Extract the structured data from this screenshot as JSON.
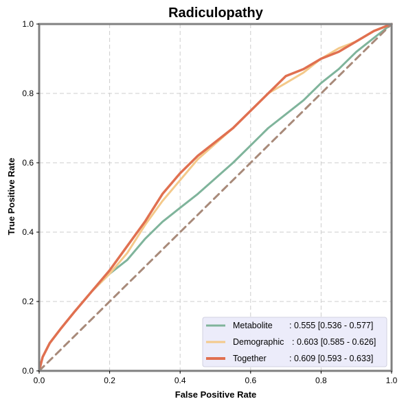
{
  "chart_data": {
    "type": "line",
    "title": "Radiculopathy",
    "xlabel": "False Positive Rate",
    "ylabel": "True Positive Rate",
    "xlim": [
      0,
      1
    ],
    "ylim": [
      0,
      1
    ],
    "xticks": [
      "0.0",
      "0.2",
      "0.4",
      "0.6",
      "0.8",
      "1.0"
    ],
    "yticks": [
      "0.0",
      "0.2",
      "0.4",
      "0.6",
      "0.8",
      "1.0"
    ],
    "grid": true,
    "legend_position": "bottom-right",
    "colors": {
      "metabolite": "#7fb49b",
      "demographic": "#f4c98a",
      "together": "#e07050",
      "chance": "#a88a7a",
      "frame": "#808080",
      "grid": "#cccccc",
      "legend_bg": "#ebebfa"
    },
    "legend": [
      {
        "name": "Metabolite",
        "text": ": 0.555 [0.536 - 0.577]"
      },
      {
        "name": "Demographic",
        "text": ": 0.603 [0.585 - 0.626]"
      },
      {
        "name": "Together",
        "text": ": 0.609 [0.593 - 0.633]"
      }
    ],
    "series": [
      {
        "name": "Metabolite",
        "key": "metabolite",
        "x": [
          0,
          0.01,
          0.03,
          0.06,
          0.1,
          0.15,
          0.2,
          0.25,
          0.3,
          0.35,
          0.4,
          0.45,
          0.5,
          0.55,
          0.6,
          0.65,
          0.7,
          0.75,
          0.8,
          0.85,
          0.9,
          0.95,
          1.0
        ],
        "y": [
          0,
          0.04,
          0.08,
          0.12,
          0.17,
          0.23,
          0.28,
          0.32,
          0.38,
          0.43,
          0.47,
          0.51,
          0.555,
          0.6,
          0.65,
          0.7,
          0.74,
          0.78,
          0.83,
          0.87,
          0.92,
          0.96,
          1.0
        ]
      },
      {
        "name": "Demographic",
        "key": "demographic",
        "x": [
          0,
          0.01,
          0.03,
          0.06,
          0.1,
          0.15,
          0.2,
          0.25,
          0.3,
          0.35,
          0.4,
          0.45,
          0.5,
          0.55,
          0.6,
          0.65,
          0.7,
          0.75,
          0.8,
          0.85,
          0.9,
          0.95,
          1.0
        ],
        "y": [
          0,
          0.04,
          0.08,
          0.12,
          0.17,
          0.23,
          0.28,
          0.34,
          0.42,
          0.49,
          0.55,
          0.61,
          0.655,
          0.7,
          0.75,
          0.8,
          0.83,
          0.86,
          0.9,
          0.93,
          0.95,
          0.98,
          1.0
        ]
      },
      {
        "name": "Together",
        "key": "together",
        "x": [
          0,
          0.01,
          0.03,
          0.06,
          0.1,
          0.15,
          0.2,
          0.25,
          0.3,
          0.35,
          0.4,
          0.45,
          0.5,
          0.55,
          0.6,
          0.65,
          0.7,
          0.75,
          0.8,
          0.85,
          0.9,
          0.95,
          1.0
        ],
        "y": [
          0,
          0.04,
          0.08,
          0.12,
          0.17,
          0.23,
          0.29,
          0.36,
          0.43,
          0.51,
          0.57,
          0.62,
          0.66,
          0.7,
          0.75,
          0.8,
          0.85,
          0.87,
          0.9,
          0.92,
          0.95,
          0.98,
          1.0
        ]
      },
      {
        "name": "",
        "key": "chance",
        "x": [
          0,
          1
        ],
        "y": [
          0,
          1
        ]
      }
    ]
  }
}
